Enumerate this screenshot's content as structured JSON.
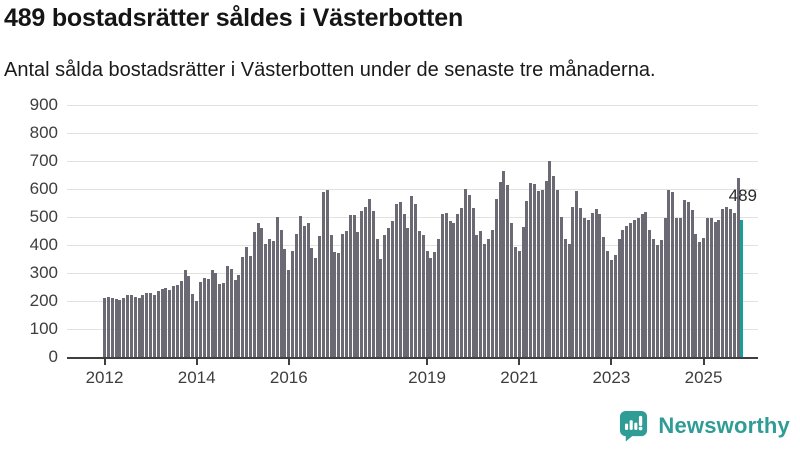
{
  "header": {
    "title": "489 bostadsrätter såldes i Västerbotten",
    "subtitle": "Antal sålda bostadsrätter i Västerbotten under de senaste tre månaderna."
  },
  "chart_data": {
    "type": "bar",
    "title": "489 bostadsrätter såldes i Västerbotten",
    "x_start": "2012-01",
    "x_end": "2025-11",
    "frequency": "monthly",
    "values": [
      210,
      215,
      212,
      206,
      205,
      212,
      220,
      223,
      215,
      211,
      222,
      228,
      228,
      222,
      235,
      242,
      248,
      240,
      252,
      258,
      270,
      312,
      288,
      226,
      200,
      268,
      283,
      278,
      310,
      300,
      260,
      264,
      324,
      316,
      274,
      292,
      356,
      392,
      360,
      446,
      478,
      462,
      405,
      420,
      415,
      500,
      455,
      385,
      310,
      378,
      440,
      505,
      468,
      478,
      390,
      355,
      432,
      590,
      595,
      437,
      375,
      370,
      440,
      450,
      508,
      508,
      445,
      520,
      535,
      565,
      520,
      420,
      350,
      435,
      460,
      485,
      545,
      555,
      510,
      462,
      575,
      545,
      450,
      435,
      380,
      352,
      375,
      420,
      510,
      515,
      485,
      480,
      510,
      532,
      600,
      578,
      532,
      435,
      450,
      405,
      420,
      455,
      565,
      625,
      665,
      615,
      480,
      392,
      380,
      463,
      557,
      622,
      617,
      593,
      598,
      627,
      700,
      645,
      595,
      500,
      420,
      405,
      537,
      593,
      532,
      495,
      490,
      515,
      527,
      512,
      430,
      380,
      348,
      365,
      420,
      455,
      467,
      478,
      490,
      495,
      512,
      518,
      455,
      420,
      400,
      418,
      495,
      595,
      590,
      495,
      495,
      560,
      555,
      525,
      440,
      410,
      425,
      495,
      498,
      483,
      489,
      528,
      535,
      530,
      513,
      640,
      489
    ],
    "highlight": {
      "index": 166,
      "value": 489,
      "label": "489"
    },
    "y_ticks": [
      0,
      100,
      200,
      300,
      400,
      500,
      600,
      700,
      800,
      900
    ],
    "ylim": [
      0,
      900
    ],
    "x_ticks": [
      {
        "label": "2012",
        "month_index": 0
      },
      {
        "label": "2014",
        "month_index": 24
      },
      {
        "label": "2016",
        "month_index": 48
      },
      {
        "label": "2019",
        "month_index": 84
      },
      {
        "label": "2021",
        "month_index": 108
      },
      {
        "label": "2023",
        "month_index": 132
      },
      {
        "label": "2025",
        "month_index": 156
      }
    ],
    "grid": true,
    "legend": null,
    "colors": {
      "bar": "#6b6a74",
      "highlight": "#1a9e98",
      "grid": "#e2e2e2",
      "axis": "#3f3f3f",
      "tick_label": "#3e3e3e"
    }
  },
  "footer": {
    "brand": "Newsworthy",
    "brand_color": "#2f9c95"
  }
}
